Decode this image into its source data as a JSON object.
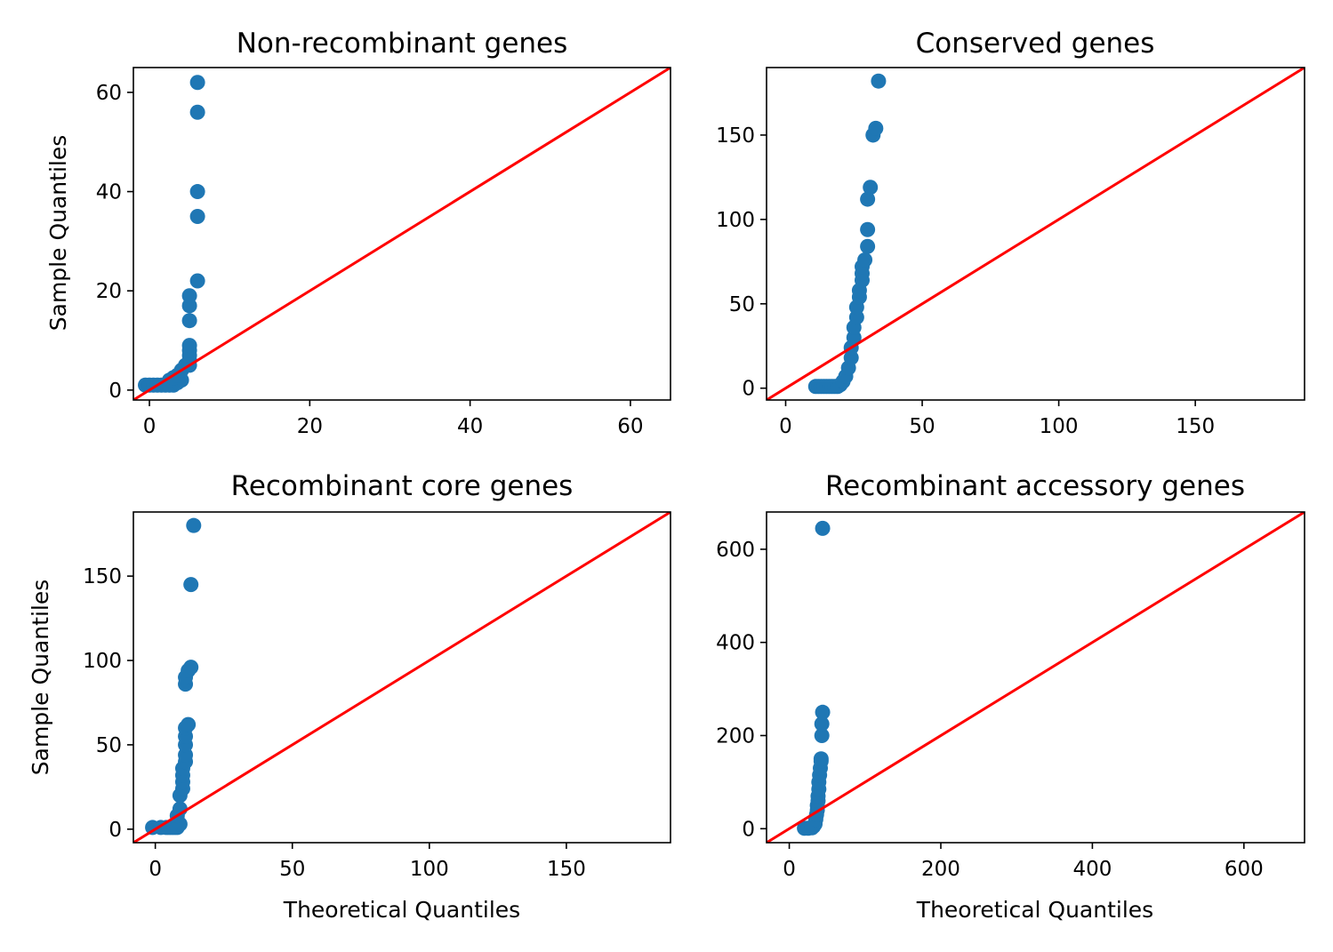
{
  "colors": {
    "points": "#1f77b4",
    "reference_line": "#ff0000",
    "axes": "#000000"
  },
  "chart_data": [
    {
      "type": "scatter",
      "title": "Non-recombinant genes",
      "xlabel": "",
      "ylabel": "Sample Quantiles",
      "xlim": [
        -2,
        65
      ],
      "ylim": [
        -2,
        65
      ],
      "xticks": [
        0,
        20,
        40,
        60
      ],
      "yticks": [
        0,
        20,
        40,
        60
      ],
      "reference_line": "45-degree",
      "grid": false,
      "points": [
        [
          -0.5,
          1
        ],
        [
          0,
          1
        ],
        [
          0.5,
          1
        ],
        [
          1,
          1
        ],
        [
          1.5,
          1
        ],
        [
          2,
          1
        ],
        [
          2.5,
          1
        ],
        [
          3,
          1
        ],
        [
          3.5,
          1.5
        ],
        [
          4,
          2
        ],
        [
          2.5,
          2
        ],
        [
          3,
          2.5
        ],
        [
          3.5,
          3
        ],
        [
          4,
          4
        ],
        [
          4.5,
          5
        ],
        [
          5,
          5
        ],
        [
          5,
          6
        ],
        [
          5,
          7
        ],
        [
          5,
          8
        ],
        [
          5,
          9
        ],
        [
          5,
          14
        ],
        [
          5,
          17
        ],
        [
          5,
          19
        ],
        [
          6,
          22
        ],
        [
          6,
          35
        ],
        [
          6,
          40
        ],
        [
          6,
          56
        ],
        [
          6,
          62
        ]
      ]
    },
    {
      "type": "scatter",
      "title": "Conserved genes",
      "xlabel": "",
      "ylabel": "",
      "xlim": [
        -7,
        190
      ],
      "ylim": [
        -7,
        190
      ],
      "xticks": [
        0,
        50,
        100,
        150
      ],
      "yticks": [
        0,
        50,
        100,
        150
      ],
      "reference_line": "45-degree",
      "grid": false,
      "points": [
        [
          11,
          1
        ],
        [
          12,
          1
        ],
        [
          13,
          1
        ],
        [
          14,
          1
        ],
        [
          15,
          1
        ],
        [
          16,
          1
        ],
        [
          17,
          1
        ],
        [
          18,
          1
        ],
        [
          19,
          1
        ],
        [
          20,
          2
        ],
        [
          21,
          4
        ],
        [
          22,
          7
        ],
        [
          23,
          12
        ],
        [
          24,
          18
        ],
        [
          24,
          24
        ],
        [
          25,
          30
        ],
        [
          25,
          36
        ],
        [
          26,
          42
        ],
        [
          26,
          48
        ],
        [
          27,
          54
        ],
        [
          27,
          58
        ],
        [
          28,
          64
        ],
        [
          28,
          68
        ],
        [
          28,
          72
        ],
        [
          29,
          76
        ],
        [
          30,
          84
        ],
        [
          30,
          94
        ],
        [
          30,
          112
        ],
        [
          31,
          119
        ],
        [
          32,
          150
        ],
        [
          33,
          154
        ],
        [
          34,
          182
        ]
      ]
    },
    {
      "type": "scatter",
      "title": "Recombinant core genes",
      "xlabel": "Theoretical Quantiles",
      "ylabel": "Sample Quantiles",
      "xlim": [
        -8,
        188
      ],
      "ylim": [
        -8,
        188
      ],
      "xticks": [
        0,
        50,
        100,
        150
      ],
      "yticks": [
        0,
        50,
        100,
        150
      ],
      "reference_line": "45-degree",
      "grid": false,
      "points": [
        [
          -1,
          1
        ],
        [
          2,
          1
        ],
        [
          4,
          1
        ],
        [
          5,
          1
        ],
        [
          6,
          1
        ],
        [
          7,
          1
        ],
        [
          8,
          1
        ],
        [
          9,
          3
        ],
        [
          8,
          8
        ],
        [
          9,
          12
        ],
        [
          9,
          20
        ],
        [
          10,
          24
        ],
        [
          10,
          28
        ],
        [
          10,
          32
        ],
        [
          10,
          36
        ],
        [
          11,
          40
        ],
        [
          11,
          44
        ],
        [
          11,
          50
        ],
        [
          11,
          55
        ],
        [
          11,
          60
        ],
        [
          12,
          62
        ],
        [
          11,
          86
        ],
        [
          11,
          90
        ],
        [
          12,
          94
        ],
        [
          13,
          96
        ],
        [
          13,
          145
        ],
        [
          14,
          180
        ]
      ]
    },
    {
      "type": "scatter",
      "title": "Recombinant accessory genes",
      "xlabel": "Theoretical Quantiles",
      "ylabel": "",
      "xlim": [
        -30,
        680
      ],
      "ylim": [
        -30,
        680
      ],
      "xticks": [
        0,
        200,
        400,
        600
      ],
      "yticks": [
        0,
        200,
        400,
        600
      ],
      "reference_line": "45-degree",
      "grid": false,
      "points": [
        [
          20,
          1
        ],
        [
          25,
          1
        ],
        [
          30,
          2
        ],
        [
          32,
          5
        ],
        [
          34,
          10
        ],
        [
          35,
          20
        ],
        [
          36,
          30
        ],
        [
          37,
          40
        ],
        [
          37,
          50
        ],
        [
          38,
          60
        ],
        [
          38,
          70
        ],
        [
          39,
          85
        ],
        [
          39,
          100
        ],
        [
          40,
          115
        ],
        [
          41,
          130
        ],
        [
          42,
          145
        ],
        [
          42,
          150
        ],
        [
          43,
          200
        ],
        [
          43,
          225
        ],
        [
          44,
          250
        ],
        [
          44,
          645
        ]
      ]
    }
  ]
}
